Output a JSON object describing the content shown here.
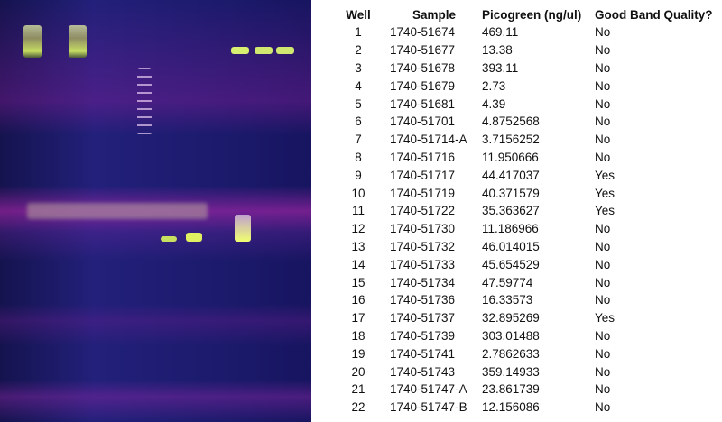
{
  "gel_image": {
    "description_icon": "gel-electrophoresis-image"
  },
  "table": {
    "headers": [
      "Well",
      "Sample",
      "Picogreen (ng/ul)",
      "Good Band Quality?"
    ],
    "rows": [
      [
        "1",
        "1740-51674",
        "469.11",
        "No"
      ],
      [
        "2",
        "1740-51677",
        "13.38",
        "No"
      ],
      [
        "3",
        "1740-51678",
        "393.11",
        "No"
      ],
      [
        "4",
        "1740-51679",
        "2.73",
        "No"
      ],
      [
        "5",
        "1740-51681",
        "4.39",
        "No"
      ],
      [
        "6",
        "1740-51701",
        "4.8752568",
        "No"
      ],
      [
        "7",
        "1740-51714-A",
        "3.7156252",
        "No"
      ],
      [
        "8",
        "1740-51716",
        "11.950666",
        "No"
      ],
      [
        "9",
        "1740-51717",
        "44.417037",
        "Yes"
      ],
      [
        "10",
        "1740-51719",
        "40.371579",
        "Yes"
      ],
      [
        "11",
        "1740-51722",
        "35.363627",
        "Yes"
      ],
      [
        "12",
        "1740-51730",
        "11.186966",
        "No"
      ],
      [
        "13",
        "1740-51732",
        "46.014015",
        "No"
      ],
      [
        "14",
        "1740-51733",
        "45.654529",
        "No"
      ],
      [
        "15",
        "1740-51734",
        "47.59774",
        "No"
      ],
      [
        "16",
        "1740-51736",
        "16.33573",
        "No"
      ],
      [
        "17",
        "1740-51737",
        "32.895269",
        "Yes"
      ],
      [
        "18",
        "1740-51739",
        "303.01488",
        "No"
      ],
      [
        "19",
        "1740-51741",
        "2.7862633",
        "No"
      ],
      [
        "20",
        "1740-51743",
        "359.14933",
        "No"
      ],
      [
        "21",
        "1740-51747-A",
        "23.861739",
        "No"
      ],
      [
        "22",
        "1740-51747-B",
        "12.156086",
        "No"
      ]
    ]
  }
}
